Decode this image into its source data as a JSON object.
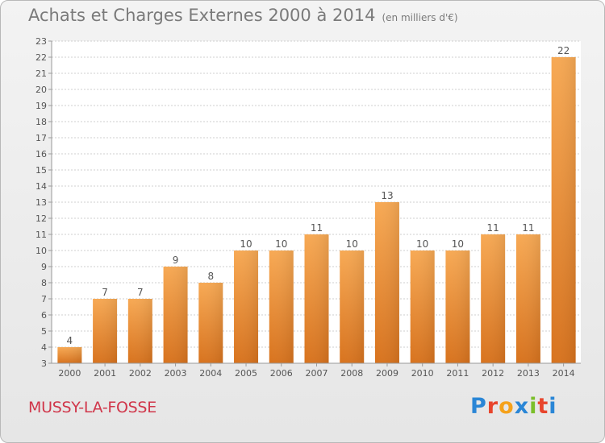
{
  "title": "Achats et Charges Externes 2000 à 2014",
  "unit_note": "(en milliers d'€)",
  "commune": "MUSSY-LA-FOSSE",
  "logo": {
    "text": "Proxiti",
    "colors": [
      "#2a86d6",
      "#e8452c",
      "#f5a21b",
      "#2a86d6",
      "#7bbf2a",
      "#e8452c",
      "#2a86d6"
    ]
  },
  "colors": {
    "bar_light": "#f7a954",
    "bar_dark": "#d8731e",
    "grid": "#cfcfcf",
    "axis_text": "#555555",
    "title": "#7a7a7a",
    "commune": "#d0364a"
  },
  "chart_data": {
    "type": "bar",
    "title": "Achats et Charges Externes 2000 à 2014",
    "categories": [
      "2000",
      "2001",
      "2002",
      "2003",
      "2004",
      "2005",
      "2006",
      "2007",
      "2008",
      "2009",
      "2010",
      "2011",
      "2012",
      "2013",
      "2014"
    ],
    "values": [
      4,
      7,
      7,
      9,
      8,
      10,
      10,
      11,
      10,
      13,
      10,
      10,
      11,
      11,
      22
    ],
    "ylim": [
      3,
      23
    ],
    "yticks": [
      3,
      4,
      5,
      6,
      7,
      8,
      9,
      10,
      11,
      12,
      13,
      14,
      15,
      16,
      17,
      18,
      19,
      20,
      21,
      22,
      23
    ],
    "grid": true,
    "xlabel": "",
    "ylabel": ""
  }
}
